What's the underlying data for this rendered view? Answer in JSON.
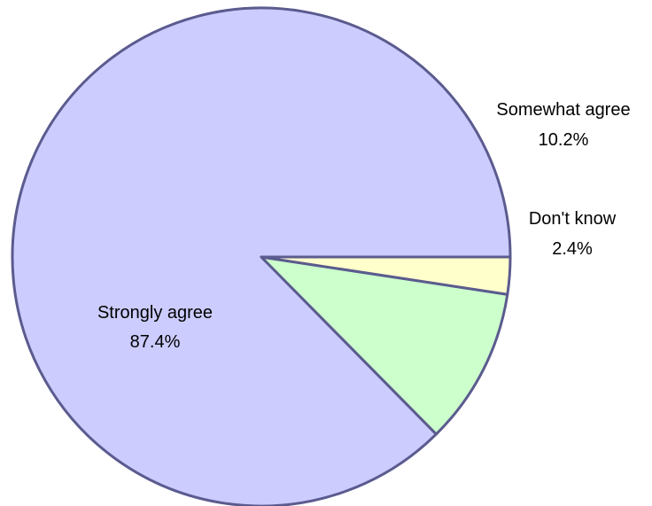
{
  "chart_data": {
    "type": "pie",
    "title": "",
    "slices": [
      {
        "label": "Strongly agree",
        "percent_label": "87.4%",
        "value": 87.4,
        "color": "#ccccff"
      },
      {
        "label": "Somewhat agree",
        "percent_label": "10.2%",
        "value": 10.2,
        "color": "#ccffcc"
      },
      {
        "label": "Don't know",
        "percent_label": "2.4%",
        "value": 2.4,
        "color": "#ffffcc"
      }
    ],
    "start_angle_deg": 0,
    "direction": "counterclockwise",
    "outline_color": "#5b5b8f",
    "legend": "none"
  }
}
